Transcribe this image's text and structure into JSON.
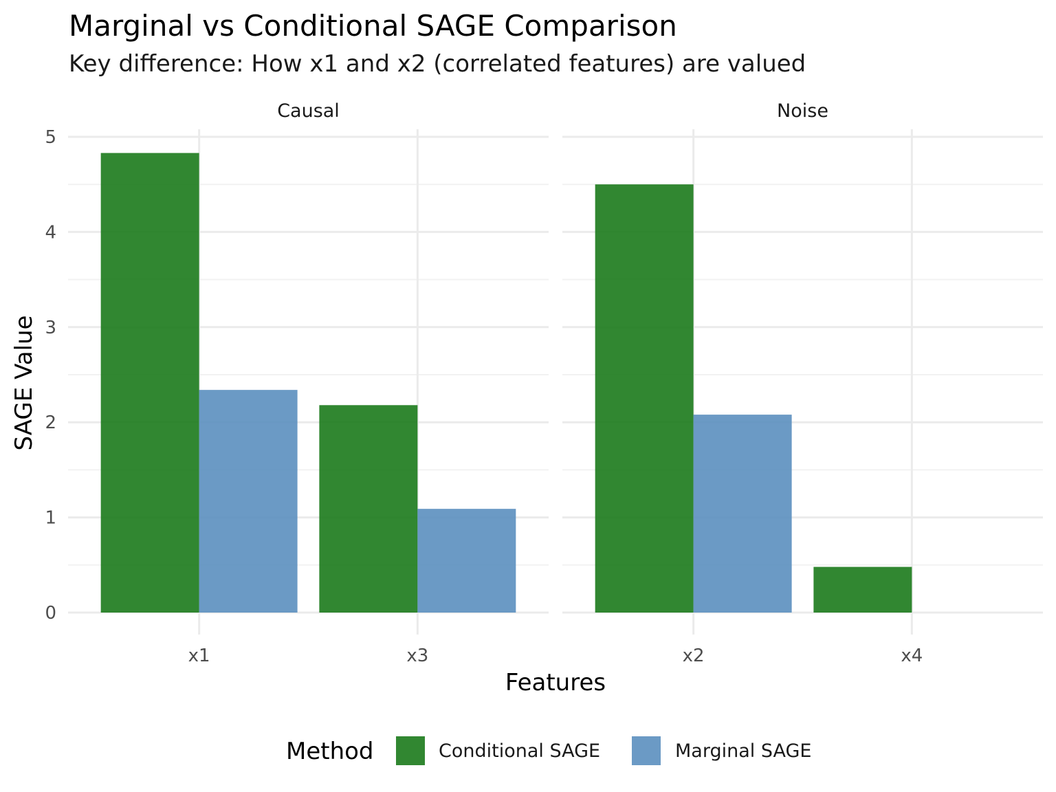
{
  "chart_data": {
    "type": "bar",
    "title": "Marginal vs Conditional SAGE Comparison",
    "subtitle": "Key difference: How x1 and x2 (correlated features) are valued",
    "xlabel": "Features",
    "ylabel": "SAGE Value",
    "ylim": [
      0,
      5
    ],
    "yticks": [
      "0",
      "1",
      "2",
      "3",
      "4",
      "5"
    ],
    "grid": true,
    "legend": {
      "title": "Method",
      "position": "bottom",
      "entries": [
        "Conditional SAGE",
        "Marginal SAGE"
      ]
    },
    "colors": {
      "Conditional SAGE": "#1B7A1B",
      "Marginal SAGE": "#5B8FBF"
    },
    "facets": [
      {
        "label": "Causal",
        "categories": [
          "x1",
          "x3"
        ],
        "series": [
          {
            "name": "Conditional SAGE",
            "values": [
              4.83,
              2.18
            ]
          },
          {
            "name": "Marginal SAGE",
            "values": [
              2.34,
              1.09
            ]
          }
        ]
      },
      {
        "label": "Noise",
        "categories": [
          "x2",
          "x4"
        ],
        "series": [
          {
            "name": "Conditional SAGE",
            "values": [
              4.5,
              0.48
            ]
          },
          {
            "name": "Marginal SAGE",
            "values": [
              2.08,
              0
            ]
          }
        ]
      }
    ]
  }
}
